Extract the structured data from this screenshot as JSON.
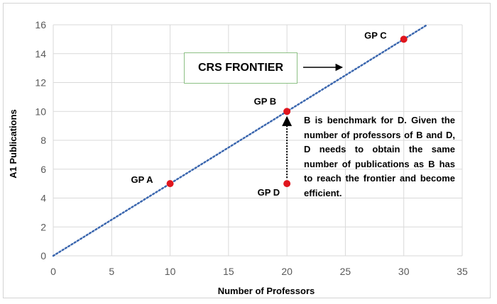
{
  "chart_data": {
    "type": "scatter",
    "xlabel": "Number of Professors",
    "ylabel": "A1 Publications",
    "xlim": [
      0,
      35
    ],
    "ylim": [
      0,
      16
    ],
    "x_ticks": [
      "0",
      "5",
      "10",
      "15",
      "20",
      "25",
      "30",
      "35"
    ],
    "y_ticks": [
      "0",
      "2",
      "4",
      "6",
      "8",
      "10",
      "12",
      "14",
      "16"
    ],
    "grid": true,
    "points": [
      {
        "label": "GP A",
        "x": 10,
        "y": 5
      },
      {
        "label": "GP B",
        "x": 20,
        "y": 10
      },
      {
        "label": "GP C",
        "x": 30,
        "y": 15
      },
      {
        "label": "GP D",
        "x": 20,
        "y": 5
      }
    ],
    "frontier": {
      "x": [
        0,
        32
      ],
      "y": [
        0,
        16
      ]
    },
    "frontier_label": "CRS FRONTIER",
    "arrow_from_point": "GP D",
    "arrow_to_point": "GP B",
    "annotation": "B is benchmark for D. Given the number of professors of B and D, D needs to obtain the same number of publications as B has to reach the frontier and become efficient.",
    "colors": {
      "points": "#e0161e",
      "frontier": "#3a66ae",
      "grid": "#d9d9d9"
    }
  }
}
